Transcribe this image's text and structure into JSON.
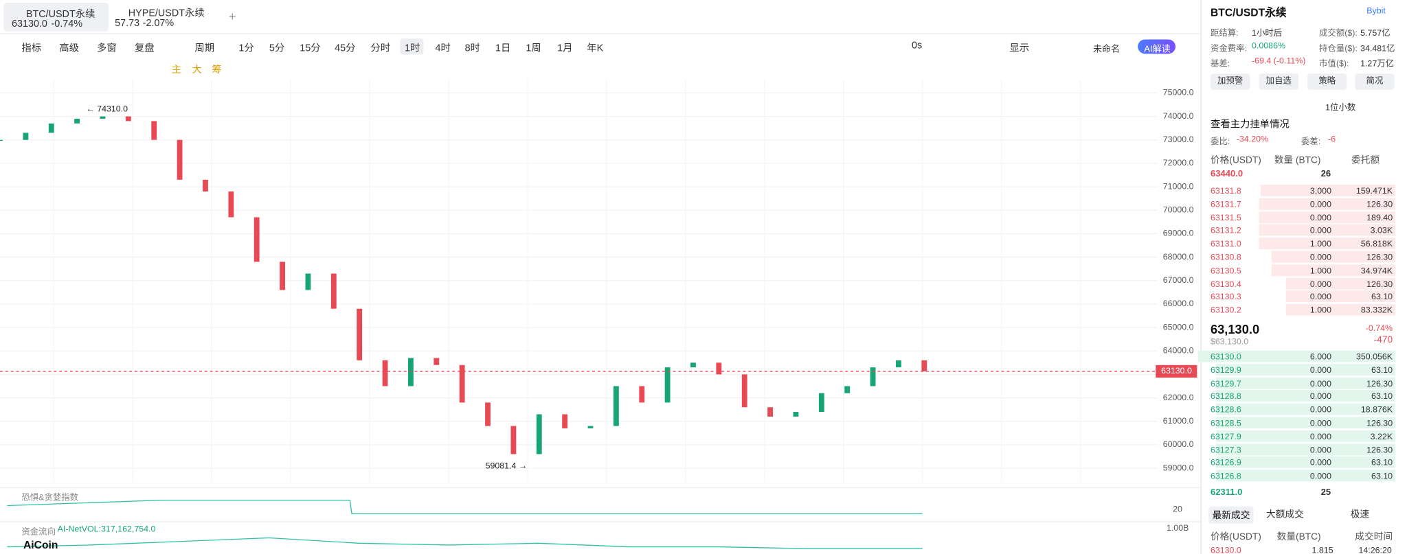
{
  "tabs": [
    {
      "symbol": "BTC/USDT永续",
      "price": "63130.0",
      "change": "-0.74%"
    },
    {
      "symbol": "HYPE/USDT永续",
      "price": "57.73",
      "change": "-2.07%"
    }
  ],
  "add_tab": "+",
  "toolbar": {
    "tools": [
      "指标",
      "高级",
      "多窗",
      "复盘"
    ],
    "period_menu": "周期",
    "periods": [
      "1分",
      "5分",
      "15分",
      "45分",
      "分时",
      "1时",
      "4时",
      "8时",
      "1日",
      "1周",
      "1月",
      "年K"
    ],
    "active_period": "1时",
    "countdown": "0s",
    "display": "显示",
    "layout_name": "未命名",
    "ai": "AI解读"
  },
  "draw_tools": [
    "主",
    "大",
    "筹"
  ],
  "chart": {
    "type": "candlestick",
    "closes": [
      73000,
      73300,
      73700,
      73900,
      74000,
      73800,
      73000,
      71300,
      70800,
      69700,
      67800,
      66600,
      67300,
      65800,
      63600,
      62500,
      63700,
      63400,
      61800,
      60800,
      59600,
      61300,
      60700,
      60800,
      62500,
      61800,
      63300,
      63500,
      63000,
      61600,
      61200,
      61400,
      62200,
      62500,
      63300,
      63600,
      63130
    ],
    "ylim": [
      58400,
      75600
    ],
    "yticks": [
      {
        "value": 75000,
        "label": "75000.0"
      },
      {
        "value": 74000,
        "label": "74000.0"
      },
      {
        "value": 73000,
        "label": "73000.0"
      },
      {
        "value": 72000,
        "label": "72000.0"
      },
      {
        "value": 71000,
        "label": "71000.0"
      },
      {
        "value": 70000,
        "label": "70000.0"
      },
      {
        "value": 69000,
        "label": "69000.0"
      },
      {
        "value": 68000,
        "label": "68000.0"
      },
      {
        "value": 67000,
        "label": "67000.0"
      },
      {
        "value": 66000,
        "label": "66000.0"
      },
      {
        "value": 65000,
        "label": "65000.0"
      },
      {
        "value": 64000,
        "label": "64000.0"
      },
      {
        "value": 63000,
        "label": "63000.0"
      },
      {
        "value": 62000,
        "label": "62000.0"
      },
      {
        "value": 61000,
        "label": "61000.0"
      },
      {
        "value": 60000,
        "label": "60000.0"
      },
      {
        "value": 59000,
        "label": "59000.0"
      }
    ],
    "current_price": {
      "value": 63130,
      "label": "63130.0"
    },
    "high": {
      "value": 74310,
      "label": "← 74310.0"
    },
    "low": {
      "value": 59081.4,
      "label": "59081.4 →"
    },
    "up_color": "#17a673",
    "down_color": "#e84a55"
  },
  "indicators": [
    {
      "name": "恐惧&贪婪指数",
      "axis": "20"
    },
    {
      "name": "资金流向",
      "value": "AI-NetVOL:317,162,754.0",
      "axis": "1.00B"
    }
  ],
  "logo": "AiCoin",
  "panel": {
    "title": "BTC/USDT永续",
    "exchange": "Bybit",
    "stats": [
      [
        "距结算:",
        "1小时后"
      ],
      [
        "成交额($):",
        "5.757亿"
      ],
      [
        "资金费率:",
        "0.0086%"
      ],
      [
        "持仓量($):",
        "34.481亿"
      ],
      [
        "基差:",
        "-69.4 (-0.11%)"
      ],
      [
        "市值($):",
        "1.27万亿"
      ]
    ],
    "buttons": [
      "加预警",
      "加自选",
      "策略",
      "简况"
    ],
    "decimals": "1位小数",
    "main_orders": "查看主力挂单情况",
    "ratio_label": "委比:",
    "ratio": "-34.20%",
    "diff_label": "委差:",
    "diff": "-6",
    "book_header": [
      "价格(USDT)",
      "数量 (BTC)",
      "委托额"
    ],
    "top": [
      "63440.0",
      "26"
    ],
    "asks": [
      [
        "63131.8",
        "3.000",
        "159.471K"
      ],
      [
        "63131.7",
        "0.000",
        "126.30"
      ],
      [
        "63131.5",
        "0.000",
        "189.40"
      ],
      [
        "63131.2",
        "0.000",
        "3.03K"
      ],
      [
        "63131.0",
        "1.000",
        "56.818K"
      ],
      [
        "63130.8",
        "0.000",
        "126.30"
      ],
      [
        "63130.5",
        "1.000",
        "34.974K"
      ],
      [
        "63130.4",
        "0.000",
        "126.30"
      ],
      [
        "63130.3",
        "0.000",
        "63.10"
      ],
      [
        "63130.2",
        "1.000",
        "83.332K"
      ]
    ],
    "last": "63,130.0",
    "last_usd": "$63,130.0",
    "last_pct": "-0.74%",
    "last_diff": "-470",
    "bids": [
      [
        "63130.0",
        "6.000",
        "350.056K"
      ],
      [
        "63129.9",
        "0.000",
        "63.10"
      ],
      [
        "63129.7",
        "0.000",
        "126.30"
      ],
      [
        "63128.8",
        "0.000",
        "63.10"
      ],
      [
        "63128.6",
        "0.000",
        "18.876K"
      ],
      [
        "63128.5",
        "0.000",
        "126.30"
      ],
      [
        "63127.9",
        "0.000",
        "3.22K"
      ],
      [
        "63127.3",
        "0.000",
        "126.30"
      ],
      [
        "63126.9",
        "0.000",
        "63.10"
      ],
      [
        "63126.8",
        "0.000",
        "63.10"
      ]
    ],
    "bottom": [
      "62311.0",
      "25"
    ],
    "trade_tabs": [
      "最新成交",
      "大额成交"
    ],
    "fast": "极速",
    "trade_header": [
      "价格(USDT)",
      "数量(BTC)",
      "成交时间"
    ],
    "trades": [
      [
        "63130.0",
        "1.815",
        "14:26:20"
      ]
    ]
  }
}
